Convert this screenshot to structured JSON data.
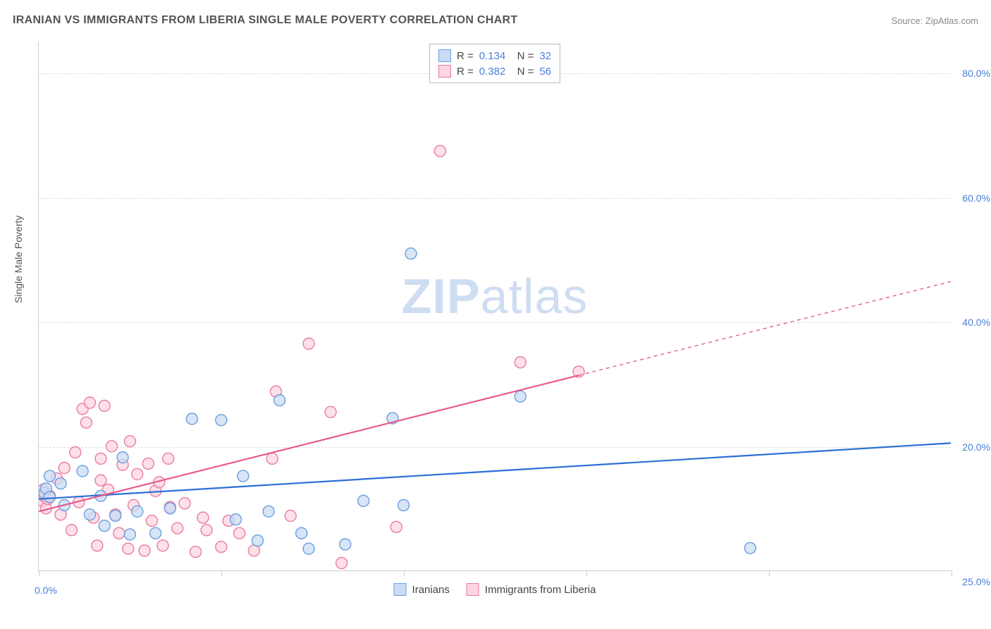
{
  "chart": {
    "title": "IRANIAN VS IMMIGRANTS FROM LIBERIA SINGLE MALE POVERTY CORRELATION CHART",
    "source": "Source: ZipAtlas.com",
    "y_axis_label": "Single Male Poverty",
    "watermark": "ZIPatlas",
    "type": "scatter",
    "xlim": [
      0,
      25
    ],
    "ylim": [
      0,
      85
    ],
    "x_ticks": [
      0,
      5,
      10,
      15,
      20,
      25
    ],
    "x_tick_labels": {
      "0": "0.0%",
      "25": "25.0%"
    },
    "y_ticks": [
      20,
      40,
      60,
      80
    ],
    "y_tick_labels": [
      "20.0%",
      "40.0%",
      "60.0%",
      "80.0%"
    ],
    "background_color": "#ffffff",
    "grid_color": "#dddddd",
    "axis_color": "#cccccc",
    "title_color": "#555555",
    "tick_label_color": "#4a7fd8",
    "marker_radius": 8,
    "marker_stroke_width": 1.4,
    "line_width": 2.2,
    "series": [
      {
        "name": "Iranians",
        "fill": "#c9dcf4",
        "stroke": "#6b9fe0",
        "line_color": "#2b6fd6",
        "r_value": "0.134",
        "n_value": "32",
        "trend": {
          "x1": 0,
          "y1": 11.5,
          "x2": 25,
          "y2": 20.5,
          "data_xmax": 25,
          "dashed_after": false
        },
        "points": [
          [
            0.15,
            12.5
          ],
          [
            0.2,
            13.2
          ],
          [
            0.3,
            11.8
          ],
          [
            0.3,
            15.2
          ],
          [
            0.6,
            14.0
          ],
          [
            0.7,
            10.5
          ],
          [
            1.2,
            16.0
          ],
          [
            1.4,
            9.0
          ],
          [
            1.7,
            12.0
          ],
          [
            1.8,
            7.2
          ],
          [
            2.1,
            8.8
          ],
          [
            2.3,
            18.2
          ],
          [
            2.5,
            5.8
          ],
          [
            2.7,
            9.5
          ],
          [
            3.2,
            6.0
          ],
          [
            3.6,
            10.0
          ],
          [
            4.2,
            24.4
          ],
          [
            5.0,
            24.2
          ],
          [
            5.4,
            8.2
          ],
          [
            5.6,
            15.2
          ],
          [
            6.0,
            4.8
          ],
          [
            6.3,
            9.5
          ],
          [
            6.6,
            27.4
          ],
          [
            7.2,
            6.0
          ],
          [
            7.4,
            3.5
          ],
          [
            8.4,
            4.2
          ],
          [
            8.9,
            11.2
          ],
          [
            9.7,
            24.5
          ],
          [
            10.0,
            10.5
          ],
          [
            10.2,
            51.0
          ],
          [
            13.2,
            28.0
          ],
          [
            19.5,
            3.6
          ]
        ]
      },
      {
        "name": "Immigrants from Liberia",
        "fill": "#fcd6e0",
        "stroke": "#ea7ca0",
        "line_color": "#e75a8a",
        "r_value": "0.382",
        "n_value": "56",
        "trend": {
          "x1": 0,
          "y1": 9.5,
          "x2": 25,
          "y2": 46.5,
          "data_xmax": 14.8,
          "dashed_after": true
        },
        "points": [
          [
            0.1,
            11.2
          ],
          [
            0.12,
            13.0
          ],
          [
            0.15,
            12.0
          ],
          [
            0.2,
            10.0
          ],
          [
            0.25,
            11.5
          ],
          [
            0.3,
            12.0
          ],
          [
            0.5,
            14.8
          ],
          [
            0.6,
            9.0
          ],
          [
            0.7,
            16.5
          ],
          [
            0.9,
            6.5
          ],
          [
            1.0,
            19.0
          ],
          [
            1.1,
            11.0
          ],
          [
            1.2,
            26.0
          ],
          [
            1.3,
            23.8
          ],
          [
            1.4,
            27.0
          ],
          [
            1.5,
            8.5
          ],
          [
            1.6,
            4.0
          ],
          [
            1.7,
            14.5
          ],
          [
            1.7,
            18.0
          ],
          [
            1.8,
            26.5
          ],
          [
            1.9,
            13.0
          ],
          [
            2.0,
            20.0
          ],
          [
            2.1,
            9.0
          ],
          [
            2.2,
            6.0
          ],
          [
            2.3,
            17.0
          ],
          [
            2.45,
            3.5
          ],
          [
            2.5,
            20.8
          ],
          [
            2.6,
            10.5
          ],
          [
            2.7,
            15.5
          ],
          [
            2.9,
            3.2
          ],
          [
            3.0,
            17.2
          ],
          [
            3.1,
            8.0
          ],
          [
            3.2,
            12.8
          ],
          [
            3.4,
            4.0
          ],
          [
            3.55,
            18.0
          ],
          [
            3.6,
            10.2
          ],
          [
            3.8,
            6.8
          ],
          [
            4.0,
            10.8
          ],
          [
            4.3,
            3.0
          ],
          [
            4.5,
            8.5
          ],
          [
            4.6,
            6.5
          ],
          [
            5.0,
            3.8
          ],
          [
            5.2,
            8.0
          ],
          [
            5.5,
            6.0
          ],
          [
            5.9,
            3.2
          ],
          [
            6.4,
            18.0
          ],
          [
            6.5,
            28.8
          ],
          [
            6.9,
            8.8
          ],
          [
            7.4,
            36.5
          ],
          [
            8.0,
            25.5
          ],
          [
            8.3,
            1.2
          ],
          [
            9.8,
            7.0
          ],
          [
            11.0,
            67.5
          ],
          [
            13.2,
            33.5
          ],
          [
            14.8,
            32.0
          ],
          [
            3.3,
            14.2
          ]
        ]
      }
    ]
  }
}
